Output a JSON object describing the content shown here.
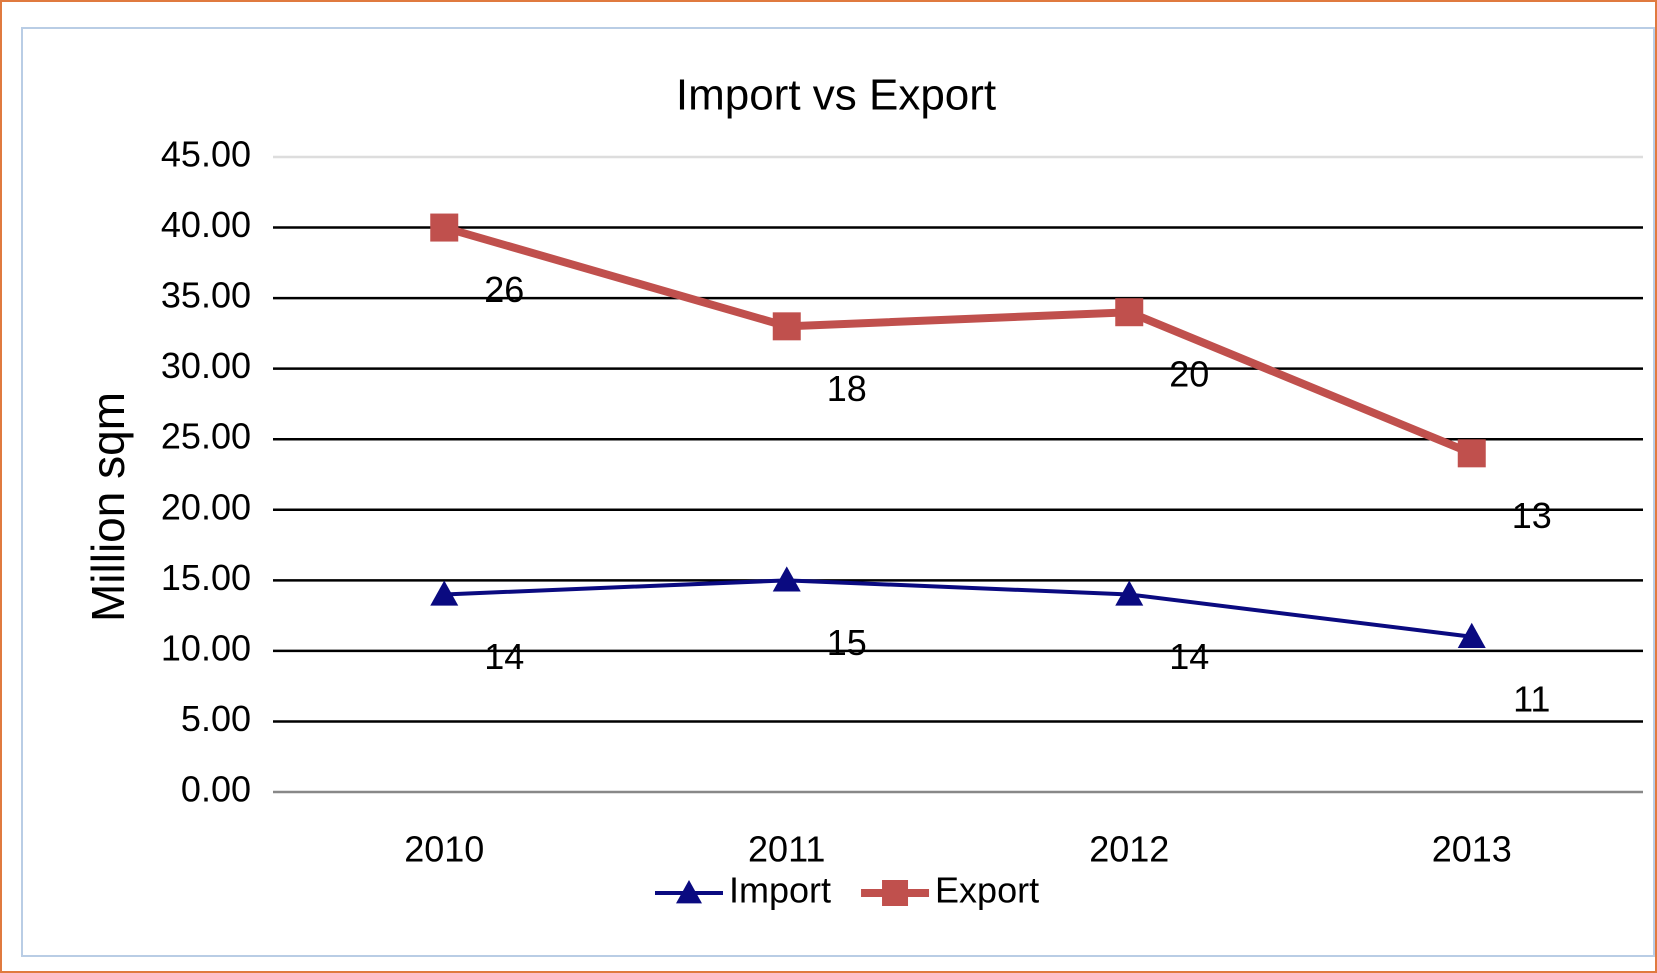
{
  "chart_data": {
    "type": "line",
    "stacked": true,
    "title": "Import vs Export",
    "y_label": "Million sqm",
    "categories": [
      "2010",
      "2011",
      "2012",
      "2013"
    ],
    "series": [
      {
        "name": "Import",
        "color": "#0a0a80",
        "marker": "triangle",
        "values": [
          14,
          15,
          14,
          11
        ]
      },
      {
        "name": "Export",
        "color": "#c0504d",
        "marker": "square",
        "values": [
          26,
          18,
          20,
          13
        ]
      }
    ],
    "ylim": [
      0,
      45
    ],
    "yticks": [
      {
        "value": 0,
        "label": "0.00"
      },
      {
        "value": 5,
        "label": "5.00"
      },
      {
        "value": 10,
        "label": "10.00"
      },
      {
        "value": 15,
        "label": "15.00"
      },
      {
        "value": 20,
        "label": "20.00"
      },
      {
        "value": 25,
        "label": "25.00"
      },
      {
        "value": 30,
        "label": "30.00"
      },
      {
        "value": 35,
        "label": "35.00"
      },
      {
        "value": 40,
        "label": "40.00"
      },
      {
        "value": 45,
        "label": "45.00"
      }
    ],
    "grid": true,
    "legend": "bottom"
  }
}
